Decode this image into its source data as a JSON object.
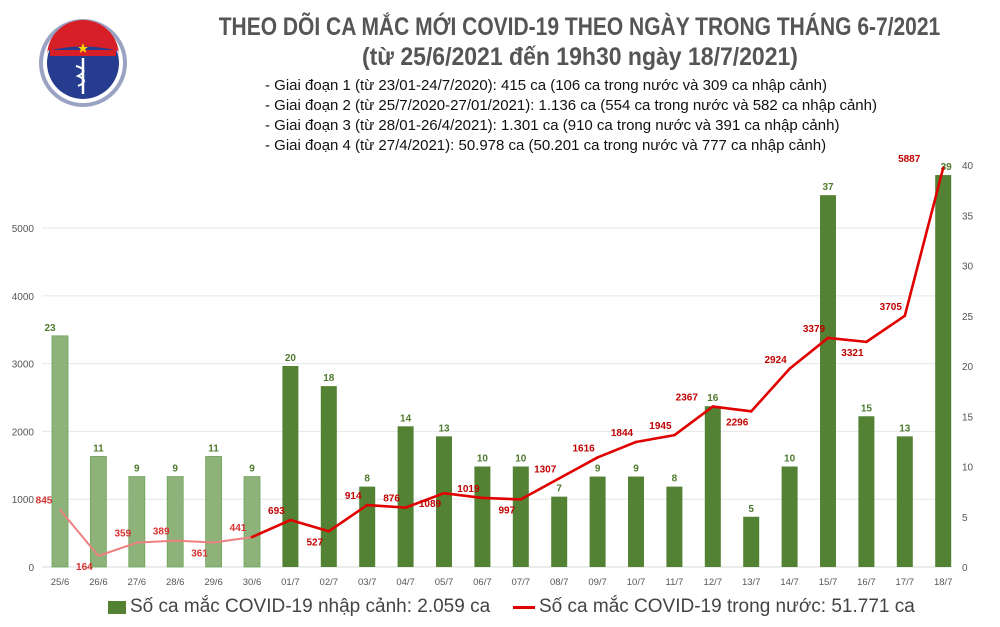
{
  "header": {
    "logo_text_top": "BỘ Y TẾ",
    "logo_text_bottom": "MINISTRY OF HEALTH",
    "title_line1": "THEO DÕI CA MẮC MỚI COVID-19 THEO NGÀY TRONG THÁNG 6-7/2021",
    "title_line2": "(từ 25/6/2021 đến 19h30 ngày 18/7/2021)",
    "stages": [
      "- Giai đoạn 1 (từ 23/01-24/7/2020): 415 ca (106 ca trong nước và 309 ca nhập cảnh)",
      "- Giai đoạn 2 (từ 25/7/2020-27/01/2021): 1.136 ca (554 ca trong nước và 582 ca nhập cảnh)",
      "- Giai đoạn 3 (từ 28/01-26/4/2021): 1.301 ca (910 ca trong nước và 391 ca nhập cảnh)",
      "- Giai đoạn 4 (từ 27/4/2021): 50.978 ca (50.201 ca trong nước và 777 ca nhập cảnh)"
    ]
  },
  "chart_data": {
    "type": "bar+line",
    "categories": [
      "25/6",
      "26/6",
      "27/6",
      "28/6",
      "29/6",
      "30/6",
      "01/7",
      "02/7",
      "03/7",
      "04/7",
      "05/7",
      "06/7",
      "07/7",
      "08/7",
      "09/7",
      "10/7",
      "11/7",
      "12/7",
      "13/7",
      "14/7",
      "15/7",
      "16/7",
      "17/7",
      "18/7"
    ],
    "series": [
      {
        "name": "Số ca mắc COVID-19 nhập cảnh: 2.059 ca",
        "type": "bar",
        "axis": "right",
        "color": "#548235",
        "values": [
          23,
          11,
          9,
          9,
          11,
          9,
          20,
          18,
          8,
          14,
          13,
          10,
          10,
          7,
          9,
          9,
          8,
          16,
          5,
          10,
          37,
          15,
          13,
          39
        ]
      },
      {
        "name": "Số ca mắc COVID-19 trong nước: 51.771 ca",
        "type": "line",
        "axis": "left",
        "color": "#e00000",
        "values": [
          845,
          164,
          359,
          389,
          361,
          441,
          693,
          527,
          914,
          876,
          1089,
          1019,
          997,
          1307,
          1616,
          1844,
          1945,
          2367,
          2296,
          2924,
          3379,
          3321,
          3705,
          5887
        ]
      }
    ],
    "faded_color_bar": "#8db37a",
    "faded_color_line": "#ec8080",
    "faded_count_note": "first six days (25/6–30/6) drawn lighter",
    "left_axis": {
      "ylim": [
        0,
        6000
      ],
      "ticks": [
        0,
        1000,
        2000,
        3000,
        4000,
        5000
      ]
    },
    "right_axis": {
      "ylim": [
        0,
        40
      ],
      "ticks": [
        0,
        5,
        10,
        15,
        20,
        25,
        30,
        35,
        40
      ]
    },
    "grid": true,
    "legend_placement": "bottom"
  }
}
